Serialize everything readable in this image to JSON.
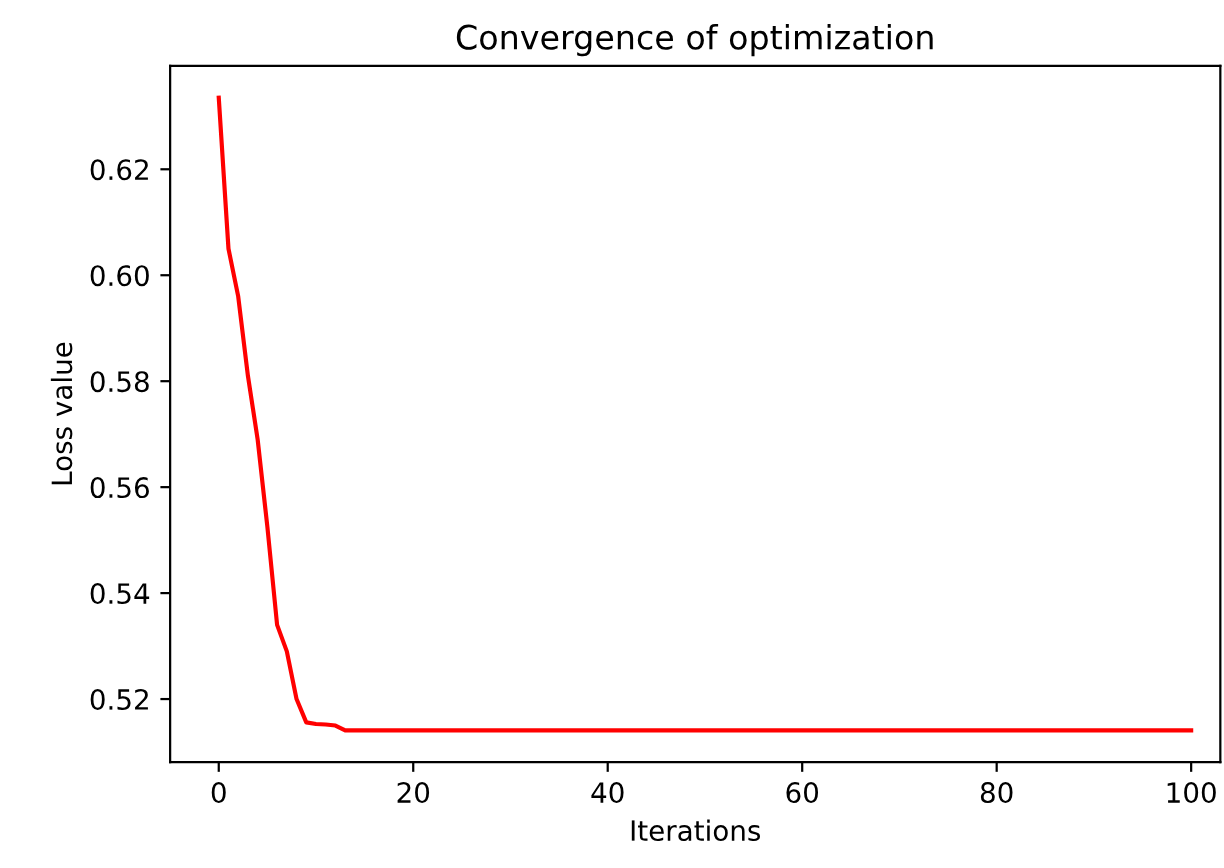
{
  "chart_data": {
    "type": "line",
    "title": "Convergence of optimization",
    "xlabel": "Iterations",
    "ylabel": "Loss value",
    "x": [
      0,
      1,
      2,
      3,
      4,
      5,
      6,
      7,
      8,
      9,
      10,
      11,
      12,
      13,
      100
    ],
    "series": [
      {
        "color": "#ff0000",
        "values": [
          0.6335,
          0.605,
          0.596,
          0.581,
          0.569,
          0.5525,
          0.534,
          0.529,
          0.52,
          0.5156,
          0.5153,
          0.5152,
          0.515,
          0.5141,
          0.5141
        ]
      }
    ],
    "xlim": [
      -5,
      103
    ],
    "ylim": [
      0.5081,
      0.6395
    ],
    "xticks": [
      0,
      20,
      40,
      60,
      80,
      100
    ],
    "yticks": [
      {
        "value": 0.52,
        "label": "0.52"
      },
      {
        "value": 0.54,
        "label": "0.54"
      },
      {
        "value": 0.56,
        "label": "0.56"
      },
      {
        "value": 0.58,
        "label": "0.58"
      },
      {
        "value": 0.6,
        "label": "0.60"
      },
      {
        "value": 0.62,
        "label": "0.62"
      }
    ],
    "grid": false
  }
}
